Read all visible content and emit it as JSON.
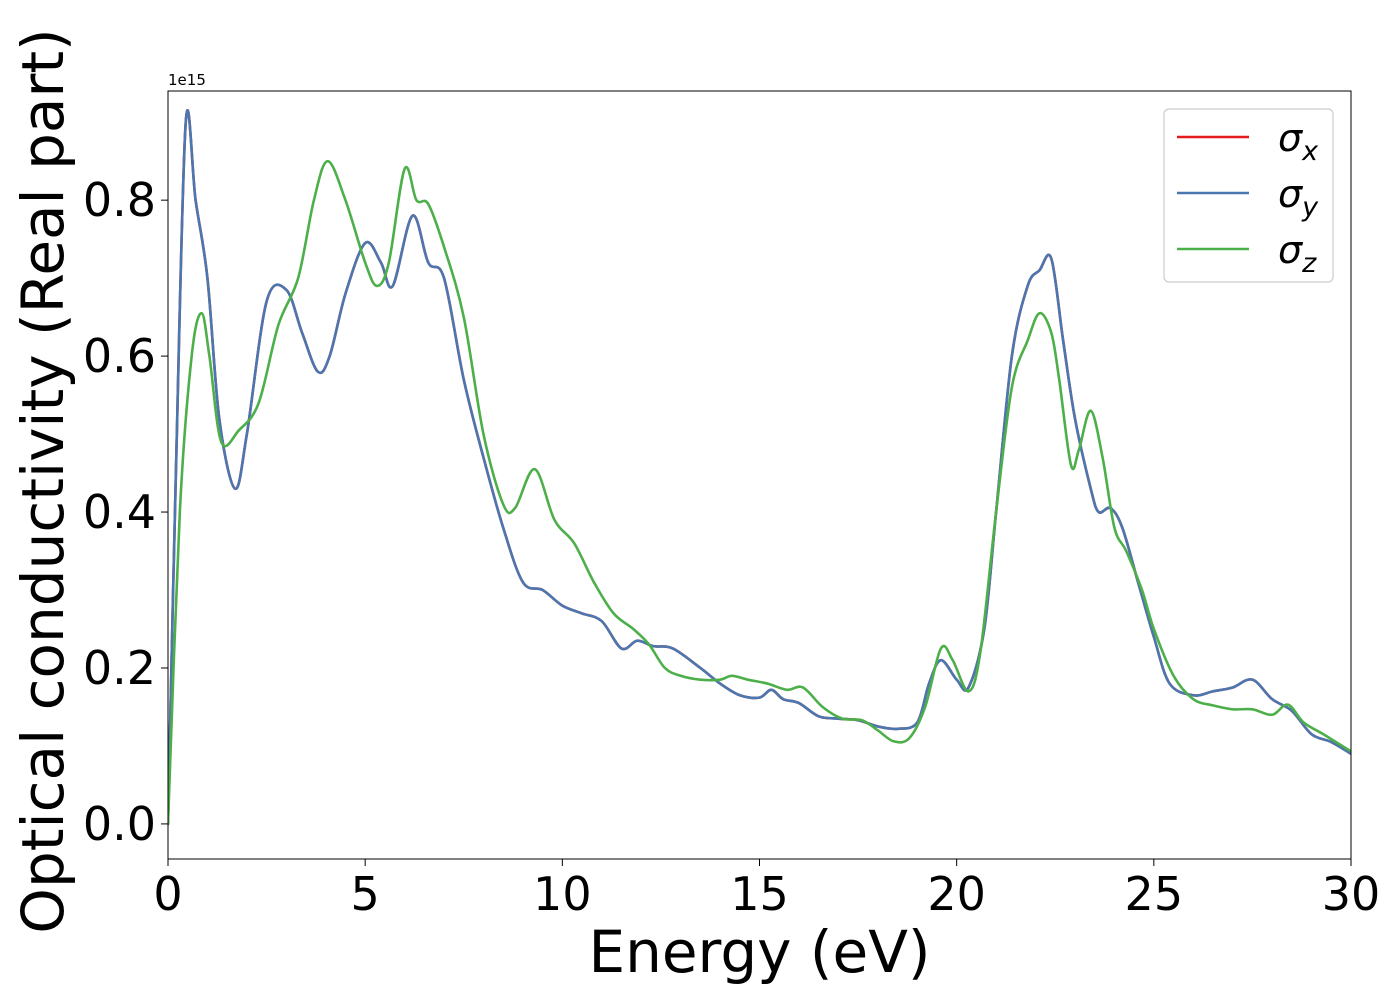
{
  "chart_data": {
    "type": "line",
    "title": "",
    "xlabel": "Energy (eV)",
    "ylabel": "Optical conductivity (Real part)",
    "offset_label": "1e15",
    "xlim": [
      0,
      30
    ],
    "ylim": [
      -0.045,
      0.94
    ],
    "x_ticks": [
      0,
      5,
      10,
      15,
      20,
      25,
      30
    ],
    "x_tick_labels": [
      "0",
      "5",
      "10",
      "15",
      "20",
      "25",
      "30"
    ],
    "y_ticks": [
      0.0,
      0.2,
      0.4,
      0.6,
      0.8
    ],
    "y_tick_labels": [
      "0.0",
      "0.2",
      "0.4",
      "0.6",
      "0.8"
    ],
    "grid": false,
    "legend_position": "top-right",
    "series": [
      {
        "name": "σx",
        "legend_base": "σ",
        "legend_sub": "x",
        "color": "#e41a1c",
        "points": [
          [
            0,
            0
          ],
          [
            0.2,
            0.45
          ],
          [
            0.45,
            0.9
          ],
          [
            0.7,
            0.8
          ],
          [
            1.0,
            0.7
          ],
          [
            1.3,
            0.52
          ],
          [
            1.7,
            0.43
          ],
          [
            2.0,
            0.5
          ],
          [
            2.5,
            0.67
          ],
          [
            3.0,
            0.685
          ],
          [
            3.4,
            0.63
          ],
          [
            3.8,
            0.58
          ],
          [
            4.1,
            0.6
          ],
          [
            4.5,
            0.68
          ],
          [
            5.0,
            0.745
          ],
          [
            5.4,
            0.72
          ],
          [
            5.7,
            0.69
          ],
          [
            6.2,
            0.78
          ],
          [
            6.6,
            0.72
          ],
          [
            7.0,
            0.7
          ],
          [
            7.5,
            0.57
          ],
          [
            8.0,
            0.47
          ],
          [
            8.5,
            0.38
          ],
          [
            9.0,
            0.31
          ],
          [
            9.5,
            0.3
          ],
          [
            10.0,
            0.28
          ],
          [
            10.5,
            0.27
          ],
          [
            11.0,
            0.26
          ],
          [
            11.5,
            0.225
          ],
          [
            11.9,
            0.235
          ],
          [
            12.3,
            0.228
          ],
          [
            12.8,
            0.225
          ],
          [
            13.5,
            0.2
          ],
          [
            14.0,
            0.18
          ],
          [
            14.5,
            0.165
          ],
          [
            15.0,
            0.162
          ],
          [
            15.3,
            0.172
          ],
          [
            15.6,
            0.16
          ],
          [
            16.0,
            0.155
          ],
          [
            16.5,
            0.138
          ],
          [
            17.0,
            0.135
          ],
          [
            17.5,
            0.133
          ],
          [
            18.0,
            0.125
          ],
          [
            18.5,
            0.122
          ],
          [
            19.0,
            0.13
          ],
          [
            19.3,
            0.18
          ],
          [
            19.6,
            0.21
          ],
          [
            20.0,
            0.185
          ],
          [
            20.3,
            0.175
          ],
          [
            20.7,
            0.25
          ],
          [
            21.0,
            0.4
          ],
          [
            21.4,
            0.6
          ],
          [
            21.8,
            0.69
          ],
          [
            22.1,
            0.71
          ],
          [
            22.4,
            0.725
          ],
          [
            22.7,
            0.62
          ],
          [
            23.0,
            0.52
          ],
          [
            23.4,
            0.43
          ],
          [
            23.6,
            0.4
          ],
          [
            23.9,
            0.405
          ],
          [
            24.2,
            0.38
          ],
          [
            24.6,
            0.31
          ],
          [
            25.0,
            0.24
          ],
          [
            25.4,
            0.18
          ],
          [
            26.0,
            0.165
          ],
          [
            26.5,
            0.17
          ],
          [
            27.0,
            0.175
          ],
          [
            27.5,
            0.185
          ],
          [
            28.0,
            0.16
          ],
          [
            28.5,
            0.145
          ],
          [
            29.0,
            0.115
          ],
          [
            29.5,
            0.105
          ],
          [
            30.0,
            0.09
          ]
        ]
      },
      {
        "name": "σy",
        "legend_base": "σ",
        "legend_sub": "y",
        "color": "#4a77b0",
        "points": [
          [
            0,
            0
          ],
          [
            0.2,
            0.45
          ],
          [
            0.45,
            0.9
          ],
          [
            0.7,
            0.8
          ],
          [
            1.0,
            0.7
          ],
          [
            1.3,
            0.52
          ],
          [
            1.7,
            0.43
          ],
          [
            2.0,
            0.5
          ],
          [
            2.5,
            0.67
          ],
          [
            3.0,
            0.685
          ],
          [
            3.4,
            0.63
          ],
          [
            3.8,
            0.58
          ],
          [
            4.1,
            0.6
          ],
          [
            4.5,
            0.68
          ],
          [
            5.0,
            0.745
          ],
          [
            5.4,
            0.72
          ],
          [
            5.7,
            0.69
          ],
          [
            6.2,
            0.78
          ],
          [
            6.6,
            0.72
          ],
          [
            7.0,
            0.7
          ],
          [
            7.5,
            0.57
          ],
          [
            8.0,
            0.47
          ],
          [
            8.5,
            0.38
          ],
          [
            9.0,
            0.31
          ],
          [
            9.5,
            0.3
          ],
          [
            10.0,
            0.28
          ],
          [
            10.5,
            0.27
          ],
          [
            11.0,
            0.26
          ],
          [
            11.5,
            0.225
          ],
          [
            11.9,
            0.235
          ],
          [
            12.3,
            0.228
          ],
          [
            12.8,
            0.225
          ],
          [
            13.5,
            0.2
          ],
          [
            14.0,
            0.18
          ],
          [
            14.5,
            0.165
          ],
          [
            15.0,
            0.162
          ],
          [
            15.3,
            0.172
          ],
          [
            15.6,
            0.16
          ],
          [
            16.0,
            0.155
          ],
          [
            16.5,
            0.138
          ],
          [
            17.0,
            0.135
          ],
          [
            17.5,
            0.133
          ],
          [
            18.0,
            0.125
          ],
          [
            18.5,
            0.122
          ],
          [
            19.0,
            0.13
          ],
          [
            19.3,
            0.18
          ],
          [
            19.6,
            0.21
          ],
          [
            20.0,
            0.185
          ],
          [
            20.3,
            0.175
          ],
          [
            20.7,
            0.25
          ],
          [
            21.0,
            0.4
          ],
          [
            21.4,
            0.6
          ],
          [
            21.8,
            0.69
          ],
          [
            22.1,
            0.71
          ],
          [
            22.4,
            0.725
          ],
          [
            22.7,
            0.62
          ],
          [
            23.0,
            0.52
          ],
          [
            23.4,
            0.43
          ],
          [
            23.6,
            0.4
          ],
          [
            23.9,
            0.405
          ],
          [
            24.2,
            0.38
          ],
          [
            24.6,
            0.31
          ],
          [
            25.0,
            0.24
          ],
          [
            25.4,
            0.18
          ],
          [
            26.0,
            0.165
          ],
          [
            26.5,
            0.17
          ],
          [
            27.0,
            0.175
          ],
          [
            27.5,
            0.185
          ],
          [
            28.0,
            0.16
          ],
          [
            28.5,
            0.145
          ],
          [
            29.0,
            0.115
          ],
          [
            29.5,
            0.105
          ],
          [
            30.0,
            0.09
          ]
        ]
      },
      {
        "name": "σz",
        "legend_base": "σ",
        "legend_sub": "z",
        "color": "#4daf4a",
        "points": [
          [
            0,
            0
          ],
          [
            0.3,
            0.4
          ],
          [
            0.6,
            0.6
          ],
          [
            0.85,
            0.655
          ],
          [
            1.05,
            0.6
          ],
          [
            1.35,
            0.49
          ],
          [
            1.8,
            0.505
          ],
          [
            2.3,
            0.54
          ],
          [
            2.8,
            0.64
          ],
          [
            3.3,
            0.7
          ],
          [
            3.7,
            0.8
          ],
          [
            4.05,
            0.85
          ],
          [
            4.5,
            0.8
          ],
          [
            5.0,
            0.72
          ],
          [
            5.3,
            0.69
          ],
          [
            5.6,
            0.72
          ],
          [
            6.0,
            0.84
          ],
          [
            6.3,
            0.8
          ],
          [
            6.6,
            0.795
          ],
          [
            7.0,
            0.74
          ],
          [
            7.5,
            0.65
          ],
          [
            8.0,
            0.5
          ],
          [
            8.5,
            0.41
          ],
          [
            8.8,
            0.405
          ],
          [
            9.3,
            0.455
          ],
          [
            9.8,
            0.39
          ],
          [
            10.3,
            0.36
          ],
          [
            10.8,
            0.31
          ],
          [
            11.3,
            0.27
          ],
          [
            11.8,
            0.25
          ],
          [
            12.2,
            0.23
          ],
          [
            12.6,
            0.2
          ],
          [
            13.0,
            0.19
          ],
          [
            13.5,
            0.185
          ],
          [
            14.0,
            0.185
          ],
          [
            14.3,
            0.19
          ],
          [
            14.7,
            0.185
          ],
          [
            15.2,
            0.18
          ],
          [
            15.7,
            0.172
          ],
          [
            16.1,
            0.175
          ],
          [
            16.6,
            0.15
          ],
          [
            17.1,
            0.135
          ],
          [
            17.6,
            0.133
          ],
          [
            18.0,
            0.12
          ],
          [
            18.4,
            0.106
          ],
          [
            18.8,
            0.11
          ],
          [
            19.2,
            0.15
          ],
          [
            19.6,
            0.225
          ],
          [
            19.9,
            0.21
          ],
          [
            20.3,
            0.17
          ],
          [
            20.6,
            0.22
          ],
          [
            21.0,
            0.4
          ],
          [
            21.4,
            0.56
          ],
          [
            21.8,
            0.62
          ],
          [
            22.1,
            0.655
          ],
          [
            22.4,
            0.63
          ],
          [
            22.6,
            0.57
          ],
          [
            22.9,
            0.46
          ],
          [
            23.1,
            0.48
          ],
          [
            23.4,
            0.53
          ],
          [
            23.7,
            0.47
          ],
          [
            24.0,
            0.38
          ],
          [
            24.3,
            0.35
          ],
          [
            24.7,
            0.3
          ],
          [
            25.0,
            0.25
          ],
          [
            25.5,
            0.19
          ],
          [
            26.0,
            0.16
          ],
          [
            26.5,
            0.152
          ],
          [
            27.0,
            0.147
          ],
          [
            27.5,
            0.147
          ],
          [
            28.0,
            0.14
          ],
          [
            28.4,
            0.153
          ],
          [
            28.8,
            0.13
          ],
          [
            29.3,
            0.115
          ],
          [
            30.0,
            0.093
          ]
        ]
      }
    ]
  }
}
